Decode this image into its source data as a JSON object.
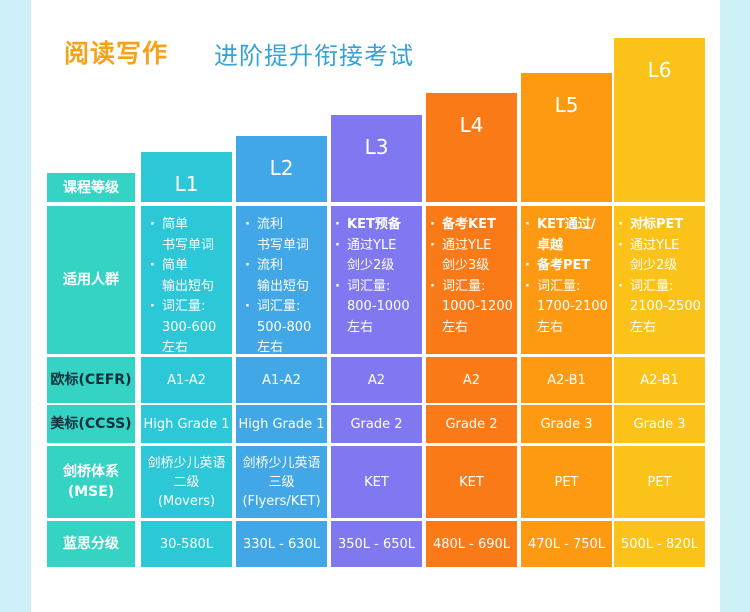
{
  "title": {
    "main": "阅读写作",
    "sub": "进阶提升衔接考试"
  },
  "colors": {
    "L1": "#2cc8d8",
    "L2": "#41a7e6",
    "L3": "#7f78f0",
    "L4": "#fb7a18",
    "L5": "#fd9a12",
    "L6": "#fbc31a",
    "label_bg": "#34d3c4",
    "page_bg": "#cdf0f7"
  },
  "row_labels": {
    "level": "课程等级",
    "audience": "适用人群",
    "cefr": "欧标(CEFR)",
    "ccss": "美标(CCSS)",
    "mse": [
      "剑桥体系",
      "(MSE)"
    ],
    "lexile": "蓝思分级"
  },
  "levels": [
    {
      "name": "L1",
      "audience": [
        {
          "bullet": true,
          "text": "简单",
          "bold": false
        },
        {
          "bullet": false,
          "text": "书写单词",
          "bold": false
        },
        {
          "bullet": true,
          "text": "简单",
          "bold": false
        },
        {
          "bullet": false,
          "text": "输出短句",
          "bold": false
        },
        {
          "bullet": true,
          "text": "词汇量:",
          "bold": false
        },
        {
          "bullet": false,
          "text": "300-600",
          "bold": false
        },
        {
          "bullet": false,
          "text": "左右",
          "bold": false
        }
      ],
      "cefr": "A1-A2",
      "ccss": "High Grade 1",
      "mse": [
        "剑桥少儿英语",
        "二级",
        "(Movers)"
      ],
      "lexile": "30-580L"
    },
    {
      "name": "L2",
      "audience": [
        {
          "bullet": true,
          "text": "流利",
          "bold": false
        },
        {
          "bullet": false,
          "text": "书写单词",
          "bold": false
        },
        {
          "bullet": true,
          "text": "流利",
          "bold": false
        },
        {
          "bullet": false,
          "text": "输出短句",
          "bold": false
        },
        {
          "bullet": true,
          "text": "词汇量:",
          "bold": false
        },
        {
          "bullet": false,
          "text": "500-800",
          "bold": false
        },
        {
          "bullet": false,
          "text": "左右",
          "bold": false
        }
      ],
      "cefr": "A1-A2",
      "ccss": "High Grade 1",
      "mse": [
        "剑桥少儿英语",
        "三级",
        "(Flyers/KET)"
      ],
      "lexile": "330L - 630L"
    },
    {
      "name": "L3",
      "audience": [
        {
          "bullet": true,
          "text": "KET预备",
          "bold": true
        },
        {
          "bullet": true,
          "text": "通过YLE",
          "bold": false
        },
        {
          "bullet": false,
          "text": "剑少2级",
          "bold": false
        },
        {
          "bullet": true,
          "text": "词汇量:",
          "bold": false
        },
        {
          "bullet": false,
          "text": "800-1000",
          "bold": false
        },
        {
          "bullet": false,
          "text": "左右",
          "bold": false
        }
      ],
      "cefr": "A2",
      "ccss": "Grade 2",
      "mse": [
        "KET"
      ],
      "lexile": "350L - 650L"
    },
    {
      "name": "L4",
      "audience": [
        {
          "bullet": true,
          "text": "备考KET",
          "bold": true
        },
        {
          "bullet": true,
          "text": "通过YLE",
          "bold": false
        },
        {
          "bullet": false,
          "text": "剑少3级",
          "bold": false
        },
        {
          "bullet": true,
          "text": "词汇量:",
          "bold": false
        },
        {
          "bullet": false,
          "text": "1000-1200",
          "bold": false
        },
        {
          "bullet": false,
          "text": "左右",
          "bold": false
        }
      ],
      "cefr": "A2",
      "ccss": "Grade 2",
      "mse": [
        "KET"
      ],
      "lexile": "480L - 690L"
    },
    {
      "name": "L5",
      "audience": [
        {
          "bullet": true,
          "text": "KET通过/",
          "bold": true
        },
        {
          "bullet": false,
          "text": "卓越",
          "bold": true
        },
        {
          "bullet": true,
          "text": "备考PET",
          "bold": true
        },
        {
          "bullet": true,
          "text": "词汇量:",
          "bold": false
        },
        {
          "bullet": false,
          "text": "1700-2100",
          "bold": false
        },
        {
          "bullet": false,
          "text": "左右",
          "bold": false
        }
      ],
      "cefr": "A2-B1",
      "ccss": "Grade 3",
      "mse": [
        "PET"
      ],
      "lexile": "470L - 750L"
    },
    {
      "name": "L6",
      "audience": [
        {
          "bullet": true,
          "text": "对标PET",
          "bold": true
        },
        {
          "bullet": true,
          "text": "通过YLE",
          "bold": false
        },
        {
          "bullet": false,
          "text": "剑少2级",
          "bold": false
        },
        {
          "bullet": true,
          "text": "词汇量:",
          "bold": false
        },
        {
          "bullet": false,
          "text": "2100-2500",
          "bold": false
        },
        {
          "bullet": false,
          "text": "左右",
          "bold": false
        }
      ],
      "cefr": "A2-B1",
      "ccss": "Grade 3",
      "mse": [
        "PET"
      ],
      "lexile": "500L - 820L"
    }
  ]
}
